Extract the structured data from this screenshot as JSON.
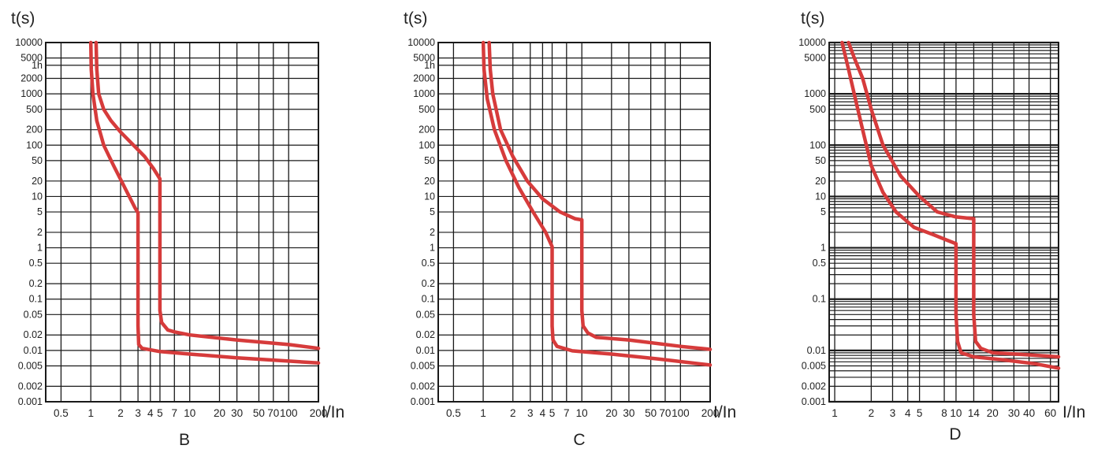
{
  "chart_data": [
    {
      "type": "line",
      "xscale": "log",
      "yscale": "log",
      "title": "B",
      "xlabel": "I/In",
      "ylabel": "t(s)",
      "xlim": [
        0.35,
        200
      ],
      "ylim": [
        0.001,
        10000
      ],
      "x_ticks": [
        "0.5",
        "1",
        "2",
        "3",
        "4",
        "5",
        "7",
        "10",
        "20",
        "30",
        "50",
        "70",
        "100",
        "200"
      ],
      "x_tick_values": [
        0.5,
        1,
        2,
        3,
        4,
        5,
        7,
        10,
        20,
        30,
        50,
        70,
        100,
        200
      ],
      "x_grid": [
        0.5,
        1,
        2,
        3,
        4,
        5,
        7,
        10,
        20,
        30,
        50,
        70,
        100
      ],
      "y_ticks": [
        "10000",
        "5000",
        "1h",
        "2000",
        "1000",
        "500",
        "200",
        "100",
        "50",
        "20",
        "10",
        "5",
        "2",
        "1",
        "0.5",
        "0.2",
        "0.1",
        "0.05",
        "0.02",
        "0.01",
        "0.005",
        "0.002",
        "0.001"
      ],
      "y_tick_values": [
        10000,
        5000,
        3600,
        2000,
        1000,
        500,
        200,
        100,
        50,
        20,
        10,
        5,
        2,
        1,
        0.5,
        0.2,
        0.1,
        0.05,
        0.02,
        0.01,
        0.005,
        0.002,
        0.001
      ],
      "grid": true,
      "series": [
        {
          "x": [
            1.0,
            1.01,
            1.05,
            1.15,
            1.35,
            1.7,
            2.2,
            2.8,
            3.0,
            3.0,
            3.05,
            3.3,
            5,
            10,
            30,
            100,
            200
          ],
          "y": [
            10000,
            3000,
            1000,
            300,
            100,
            40,
            15,
            6,
            4.8,
            0.03,
            0.013,
            0.011,
            0.0095,
            0.0085,
            0.0072,
            0.0062,
            0.0057
          ]
        },
        {
          "x": [
            1.13,
            1.15,
            1.2,
            1.35,
            1.6,
            2.0,
            2.7,
            3.5,
            4.3,
            5.0,
            5.0,
            5.2,
            6.0,
            7.0,
            10,
            30,
            100,
            200
          ],
          "y": [
            10000,
            3000,
            1000,
            500,
            300,
            180,
            100,
            60,
            35,
            22,
            0.06,
            0.035,
            0.025,
            0.023,
            0.02,
            0.016,
            0.013,
            0.011
          ]
        }
      ]
    },
    {
      "type": "line",
      "xscale": "log",
      "yscale": "log",
      "title": "C",
      "xlabel": "I/In",
      "ylabel": "t(s)",
      "xlim": [
        0.35,
        200
      ],
      "ylim": [
        0.001,
        10000
      ],
      "x_ticks": [
        "0.5",
        "1",
        "2",
        "3",
        "4",
        "5",
        "7",
        "10",
        "20",
        "30",
        "50",
        "70",
        "100",
        "200"
      ],
      "x_tick_values": [
        0.5,
        1,
        2,
        3,
        4,
        5,
        7,
        10,
        20,
        30,
        50,
        70,
        100,
        200
      ],
      "x_grid": [
        0.5,
        1,
        2,
        3,
        4,
        5,
        7,
        10,
        20,
        30,
        50,
        70,
        100
      ],
      "y_ticks": [
        "10000",
        "5000",
        "1h",
        "2000",
        "1000",
        "500",
        "200",
        "100",
        "50",
        "20",
        "10",
        "5",
        "2",
        "1",
        "0.5",
        "0.2",
        "0.1",
        "0.05",
        "0.02",
        "0.01",
        "0.005",
        "0.002",
        "0.001"
      ],
      "y_tick_values": [
        10000,
        5000,
        3600,
        2000,
        1000,
        500,
        200,
        100,
        50,
        20,
        10,
        5,
        2,
        1,
        0.5,
        0.2,
        0.1,
        0.05,
        0.02,
        0.01,
        0.005,
        0.002,
        0.001
      ],
      "grid": true,
      "series": [
        {
          "x": [
            1.0,
            1.02,
            1.1,
            1.3,
            1.7,
            2.3,
            3.2,
            4.3,
            5.0,
            5.0,
            5.1,
            5.6,
            8,
            20,
            60,
            200
          ],
          "y": [
            10000,
            3000,
            800,
            200,
            50,
            15,
            5,
            2,
            1.05,
            0.03,
            0.016,
            0.012,
            0.0098,
            0.0085,
            0.0068,
            0.0052
          ]
        },
        {
          "x": [
            1.15,
            1.18,
            1.25,
            1.5,
            2.0,
            2.8,
            4.0,
            6.0,
            8.5,
            10,
            10,
            10.3,
            11.5,
            14,
            30,
            100,
            200
          ],
          "y": [
            10000,
            3000,
            1000,
            200,
            60,
            20,
            9,
            5,
            3.7,
            3.5,
            0.06,
            0.03,
            0.022,
            0.018,
            0.016,
            0.012,
            0.0105
          ]
        }
      ]
    },
    {
      "type": "line",
      "xscale": "log",
      "yscale": "log",
      "title": "D",
      "xlabel": "I/In",
      "ylabel": "t(s)",
      "xlim": [
        0.9,
        70
      ],
      "ylim": [
        0.001,
        10000
      ],
      "x_ticks": [
        "1",
        "2",
        "3",
        "4",
        "5",
        "8",
        "10",
        "14",
        "20",
        "30",
        "40",
        "60"
      ],
      "x_tick_values": [
        1,
        2,
        3,
        4,
        5,
        8,
        10,
        14,
        20,
        30,
        40,
        60
      ],
      "x_grid": [
        1,
        2,
        3,
        4,
        5,
        8,
        10,
        14,
        20,
        30,
        40,
        60
      ],
      "y_ticks": [
        "10000",
        "5000",
        "1000",
        "500",
        "100",
        "50",
        "20",
        "10",
        "5",
        "1",
        "0.5",
        "0.1",
        "0.01",
        "0.005",
        "0.002",
        "0.001"
      ],
      "y_tick_values": [
        10000,
        5000,
        1000,
        500,
        100,
        50,
        20,
        10,
        5,
        1,
        0.5,
        0.1,
        0.01,
        0.005,
        0.002,
        0.001
      ],
      "grid": true,
      "series": [
        {
          "x": [
            1.15,
            1.3,
            1.5,
            1.75,
            2.0,
            2.5,
            3.2,
            4.5,
            6.5,
            8.5,
            10,
            10,
            10.3,
            11,
            14,
            25,
            45,
            70
          ],
          "y": [
            10000,
            3000,
            700,
            150,
            40,
            12,
            5,
            2.5,
            1.8,
            1.4,
            1.2,
            0.05,
            0.015,
            0.009,
            0.0075,
            0.0065,
            0.0055,
            0.0045
          ]
        },
        {
          "x": [
            1.3,
            1.45,
            1.7,
            2.0,
            2.5,
            3.5,
            5.0,
            7.0,
            10,
            14,
            14,
            14.5,
            16,
            20,
            40,
            70
          ],
          "y": [
            10000,
            5000,
            2000,
            500,
            100,
            25,
            10,
            5,
            4,
            3.7,
            0.05,
            0.015,
            0.011,
            0.009,
            0.0082,
            0.0075
          ]
        }
      ]
    }
  ]
}
